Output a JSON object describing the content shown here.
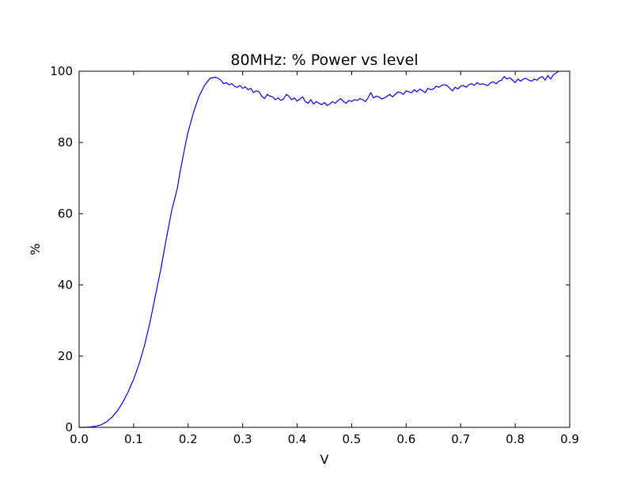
{
  "chart_data": {
    "type": "line",
    "title": "80MHz: % Power vs level",
    "xlabel": "V",
    "ylabel": "%",
    "xlim": [
      0.0,
      0.9
    ],
    "ylim": [
      0,
      100
    ],
    "xticks": [
      0.0,
      0.1,
      0.2,
      0.3,
      0.4,
      0.5,
      0.6,
      0.7,
      0.8,
      0.9
    ],
    "xtick_labels": [
      "0.0",
      "0.1",
      "0.2",
      "0.3",
      "0.4",
      "0.5",
      "0.6",
      "0.7",
      "0.8",
      "0.9"
    ],
    "yticks": [
      0,
      20,
      40,
      60,
      80,
      100
    ],
    "ytick_labels": [
      "0",
      "20",
      "40",
      "60",
      "80",
      "100"
    ],
    "grid": false,
    "legend": "none",
    "series": [
      {
        "color": "#0000ff",
        "x": [
          0.0,
          0.01,
          0.02,
          0.03,
          0.04,
          0.05,
          0.06,
          0.07,
          0.08,
          0.09,
          0.1,
          0.11,
          0.12,
          0.13,
          0.14,
          0.15,
          0.16,
          0.17,
          0.18,
          0.185,
          0.19,
          0.195,
          0.2,
          0.21,
          0.22,
          0.23,
          0.24,
          0.25,
          0.255,
          0.26,
          0.265,
          0.27,
          0.275,
          0.28,
          0.285,
          0.29,
          0.295,
          0.3,
          0.305,
          0.31,
          0.315,
          0.32,
          0.325,
          0.33,
          0.335,
          0.34,
          0.345,
          0.35,
          0.355,
          0.36,
          0.365,
          0.37,
          0.375,
          0.38,
          0.385,
          0.39,
          0.395,
          0.4,
          0.405,
          0.41,
          0.415,
          0.42,
          0.425,
          0.43,
          0.435,
          0.44,
          0.445,
          0.45,
          0.455,
          0.46,
          0.465,
          0.47,
          0.475,
          0.48,
          0.485,
          0.49,
          0.495,
          0.5,
          0.505,
          0.51,
          0.515,
          0.52,
          0.525,
          0.53,
          0.535,
          0.54,
          0.545,
          0.55,
          0.555,
          0.56,
          0.565,
          0.57,
          0.575,
          0.58,
          0.585,
          0.59,
          0.595,
          0.6,
          0.605,
          0.61,
          0.615,
          0.62,
          0.625,
          0.63,
          0.635,
          0.64,
          0.645,
          0.65,
          0.655,
          0.66,
          0.665,
          0.67,
          0.675,
          0.68,
          0.685,
          0.69,
          0.695,
          0.7,
          0.705,
          0.71,
          0.715,
          0.72,
          0.725,
          0.73,
          0.735,
          0.74,
          0.745,
          0.75,
          0.755,
          0.76,
          0.765,
          0.77,
          0.775,
          0.78,
          0.785,
          0.79,
          0.795,
          0.8,
          0.805,
          0.81,
          0.815,
          0.82,
          0.825,
          0.83,
          0.835,
          0.84,
          0.845,
          0.85,
          0.855,
          0.86,
          0.865,
          0.87,
          0.875,
          0.88
        ],
        "y": [
          0.0,
          0.0,
          0.1,
          0.3,
          0.7,
          1.5,
          2.8,
          4.6,
          7.0,
          10.0,
          13.5,
          17.8,
          23.0,
          29.5,
          37.0,
          44.5,
          53.0,
          61.0,
          67.0,
          71.5,
          75.5,
          79.5,
          83.0,
          88.5,
          93.0,
          96.0,
          98.0,
          98.3,
          98.0,
          97.5,
          96.5,
          96.8,
          96.2,
          96.5,
          95.8,
          95.5,
          96.0,
          95.2,
          95.6,
          94.8,
          95.2,
          94.0,
          94.5,
          94.2,
          93.0,
          92.3,
          93.5,
          93.0,
          92.8,
          92.0,
          92.5,
          91.8,
          92.2,
          93.5,
          93.0,
          92.0,
          92.5,
          91.6,
          92.2,
          92.8,
          91.5,
          91.0,
          92.0,
          90.8,
          91.5,
          91.0,
          90.6,
          91.2,
          90.4,
          90.8,
          91.5,
          91.0,
          91.8,
          92.3,
          91.5,
          91.0,
          91.8,
          91.5,
          92.0,
          91.8,
          92.3,
          92.0,
          91.5,
          92.5,
          94.0,
          92.5,
          93.0,
          92.8,
          92.2,
          92.5,
          93.0,
          93.5,
          92.8,
          93.5,
          94.2,
          94.0,
          93.5,
          94.5,
          94.2,
          94.0,
          94.8,
          94.2,
          95.0,
          94.5,
          94.0,
          95.2,
          94.8,
          95.0,
          95.8,
          95.5,
          96.0,
          96.2,
          96.0,
          95.2,
          94.5,
          95.5,
          95.0,
          95.8,
          96.0,
          95.5,
          96.2,
          96.5,
          96.0,
          96.8,
          96.3,
          96.5,
          96.2,
          96.0,
          96.8,
          97.0,
          96.5,
          97.2,
          97.5,
          98.5,
          97.8,
          98.2,
          97.5,
          96.8,
          97.8,
          97.2,
          97.8,
          98.0,
          97.5,
          97.2,
          97.8,
          97.5,
          98.2,
          98.5,
          97.5,
          98.8,
          97.8,
          99.0,
          99.5,
          100.0
        ]
      }
    ]
  }
}
